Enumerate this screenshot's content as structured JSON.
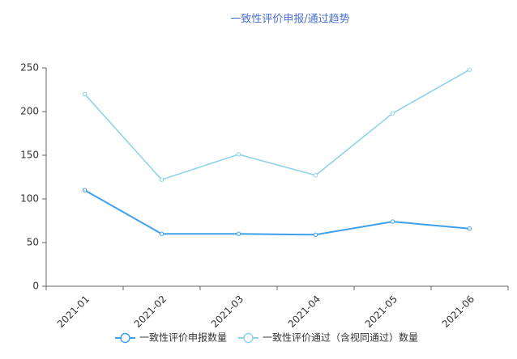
{
  "chart_data": {
    "type": "line",
    "title": "一致性评价申报/通过趋势",
    "categories": [
      "2021-01",
      "2021-02",
      "2021-03",
      "2021-04",
      "2021-05",
      "2021-06"
    ],
    "series": [
      {
        "name": "一致性评价申报数量",
        "color": "#3fa0ea",
        "values": [
          110,
          60,
          60,
          59,
          74,
          66
        ]
      },
      {
        "name": "一致性评价通过（含视同通过）数量",
        "color": "#8ed3e8",
        "values": [
          220,
          122,
          151,
          127,
          198,
          248
        ]
      }
    ],
    "ylim": [
      0,
      250
    ],
    "yticks": [
      0,
      50,
      100,
      150,
      200,
      250
    ],
    "grid": false
  }
}
